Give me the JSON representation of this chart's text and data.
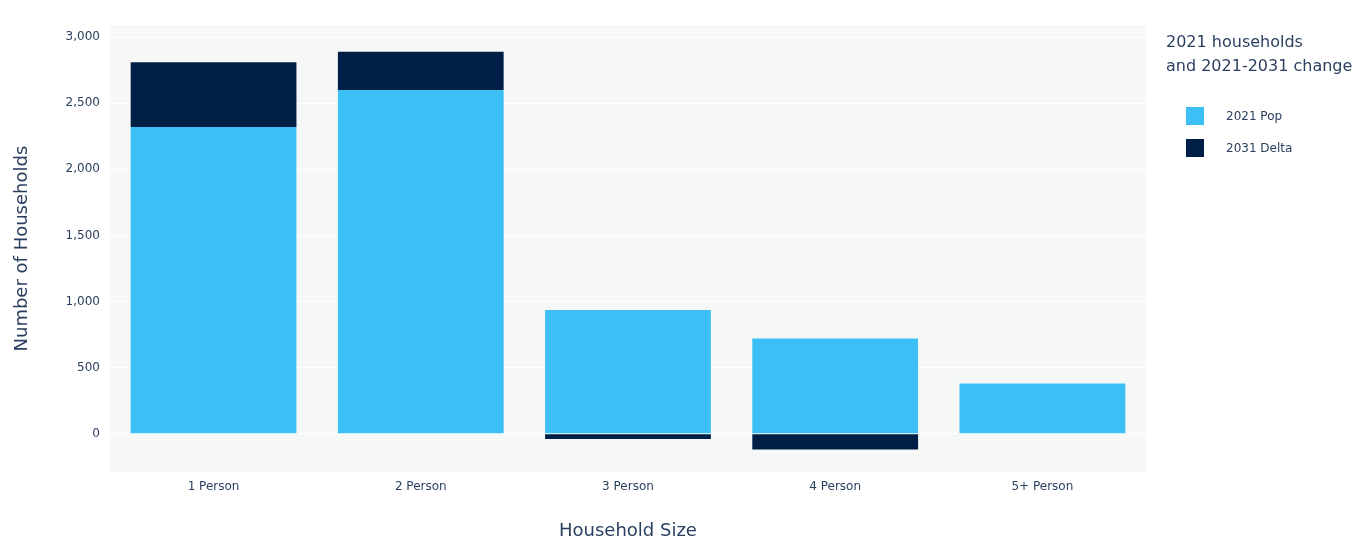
{
  "chart_data": {
    "type": "bar",
    "stacked": true,
    "xlabel": "Household Size",
    "ylabel": "Number of Households",
    "legend_title": "2021 households\nand 2021-2031 change",
    "legend": "top right",
    "categories": [
      "1 Person",
      "2 Person",
      "3 Person",
      "4 Person",
      "5+ Person"
    ],
    "series": [
      {
        "name": "2021 Pop",
        "color": "#3bbff5",
        "values": [
          2320,
          2600,
          935,
          720,
          380
        ]
      },
      {
        "name": "2031 Delta",
        "color": "#001f47",
        "values": [
          490,
          290,
          -40,
          -120,
          0
        ]
      }
    ],
    "ylim": [
      -290,
      3090
    ],
    "yticks": [
      0,
      500,
      {
        "value": 1000,
        "label": "1,000"
      },
      {
        "value": 1500,
        "label": "1,500"
      },
      {
        "value": 2000,
        "label": "2,000"
      },
      {
        "value": 2500,
        "label": "2,500"
      },
      {
        "value": 3000,
        "label": "3,000"
      }
    ],
    "grid": "y"
  }
}
